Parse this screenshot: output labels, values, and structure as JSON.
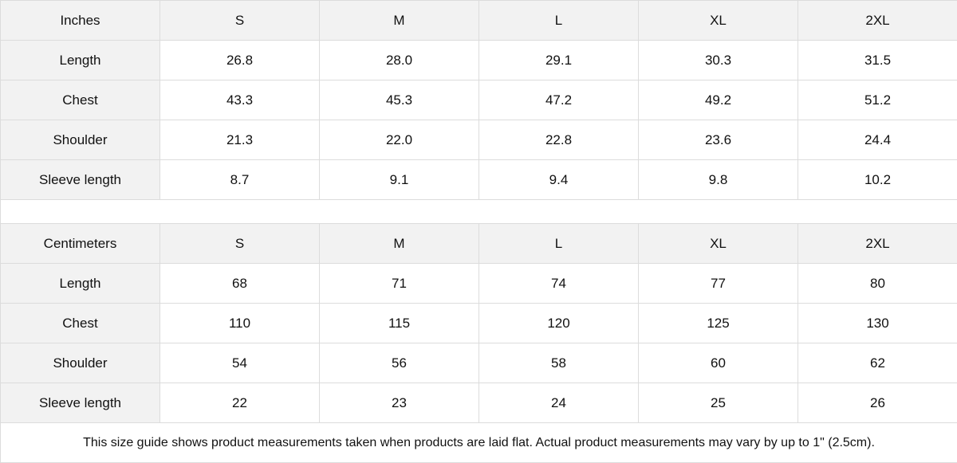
{
  "tables": [
    {
      "unit": "Inches",
      "sizes": [
        "S",
        "M",
        "L",
        "XL",
        "2XL"
      ],
      "rows": [
        {
          "label": "Length",
          "values": [
            "26.8",
            "28.0",
            "29.1",
            "30.3",
            "31.5"
          ]
        },
        {
          "label": "Chest",
          "values": [
            "43.3",
            "45.3",
            "47.2",
            "49.2",
            "51.2"
          ]
        },
        {
          "label": "Shoulder",
          "values": [
            "21.3",
            "22.0",
            "22.8",
            "23.6",
            "24.4"
          ]
        },
        {
          "label": "Sleeve length",
          "values": [
            "8.7",
            "9.1",
            "9.4",
            "9.8",
            "10.2"
          ]
        }
      ]
    },
    {
      "unit": "Centimeters",
      "sizes": [
        "S",
        "M",
        "L",
        "XL",
        "2XL"
      ],
      "rows": [
        {
          "label": "Length",
          "values": [
            "68",
            "71",
            "74",
            "77",
            "80"
          ]
        },
        {
          "label": "Chest",
          "values": [
            "110",
            "115",
            "120",
            "125",
            "130"
          ]
        },
        {
          "label": "Shoulder",
          "values": [
            "54",
            "56",
            "58",
            "60",
            "62"
          ]
        },
        {
          "label": "Sleeve length",
          "values": [
            "22",
            "23",
            "24",
            "25",
            "26"
          ]
        }
      ]
    }
  ],
  "note": "This size guide shows product measurements taken when products are laid flat.  Actual product measurements may vary by up to 1\" (2.5cm).",
  "colors": {
    "header_bg": "#f2f2f2",
    "border": "#dcdcdc"
  }
}
